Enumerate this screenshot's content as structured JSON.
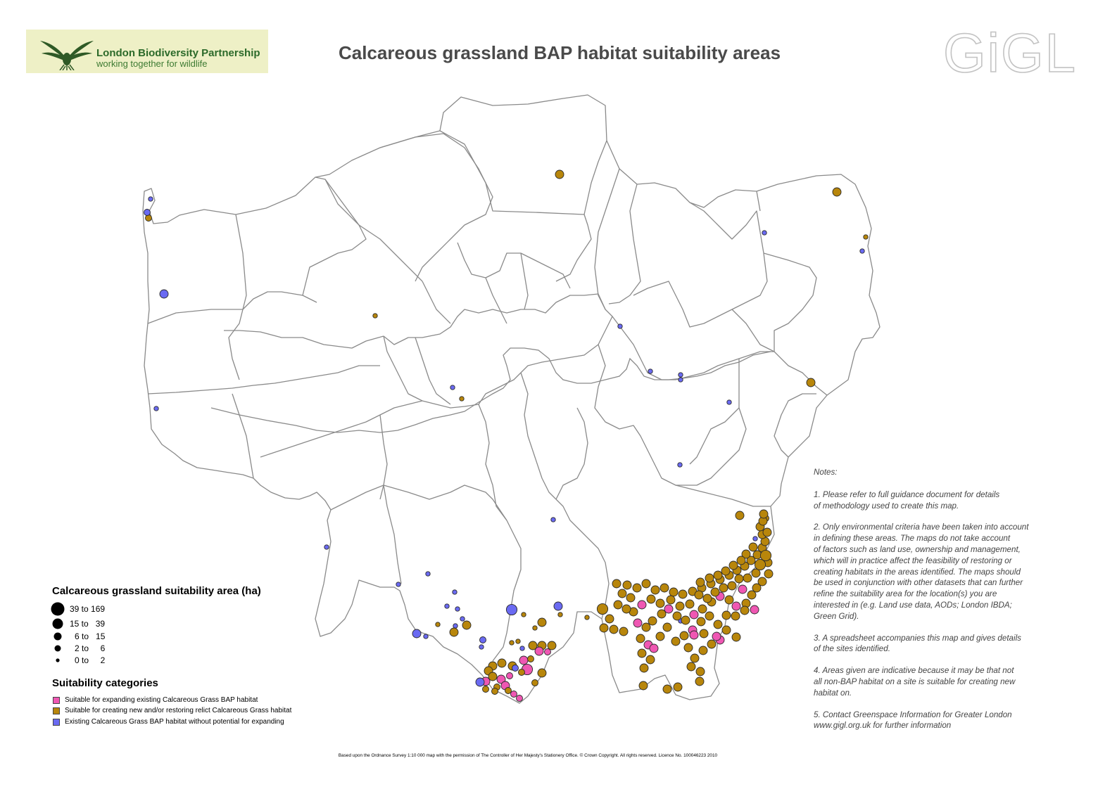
{
  "header": {
    "logo_title": "London Biodiversity Partnership",
    "logo_subtitle": "working together for wildlife",
    "title": "Calcareous grassland BAP habitat suitability areas",
    "brand_logo_text": "GiGL"
  },
  "colors": {
    "expanding": "#ef57b3",
    "creating": "#b8860b",
    "existing": "#6a6af2",
    "boundary": "#8a8a8a",
    "title": "#4a4a4a"
  },
  "legend": {
    "size_title": "Calcareous grassland suitability area (ha)",
    "size_classes": [
      {
        "label": "39 to 169"
      },
      {
        "label": "15 to   39"
      },
      {
        "label": "6 to   15"
      },
      {
        "label": "2 to     6"
      },
      {
        "label": "0 to     2"
      }
    ],
    "categories_title": "Suitability categories",
    "categories": [
      {
        "label": "Suitable for expanding existing Calcareous Grass BAP habitat",
        "color": "#ef57b3"
      },
      {
        "label": "Suitable for creating new and/or restoring relict Calcareous Grass habitat",
        "color": "#b8860b"
      },
      {
        "label": "Existing Calcareous Grass BAP habitat without potential for expanding",
        "color": "#6a6af2"
      }
    ]
  },
  "notes": {
    "heading": "Notes:",
    "items": [
      "1. Please refer to full guidance document for details\nof methodology used to create this map.",
      "2. Only environmental criteria have been taken into account\nin defining these areas.  The maps do not take account\nof factors such as land use, ownership and management,\nwhich will in practice affect the feasibility of restoring or\ncreating habitats in the areas identified.  The maps should\nbe used in conjunction with other datasets that can further\nrefine the suitability area for the location(s) you are\ninterested in (e.g. Land use data, AODs; London IBDA;\nGreen Grid).",
      "3. A spreadsheet accompanies this map and gives details\nof the sites identified.",
      "4. Areas given are indicative because it may be that not\nall non-BAP habitat on a site is suitable for creating new\nhabitat on.",
      "5. Contact Greenspace Information for Greater London\nwww.gigl.org.uk for further information"
    ]
  },
  "footer": {
    "text": "Based upon the Ordnance Survey 1:10 000 map with the permission of The Controller of Her Majesty's Stationery Office. © Crown Copyright. All rights reserved. Licence No. 100046223 2010"
  }
}
